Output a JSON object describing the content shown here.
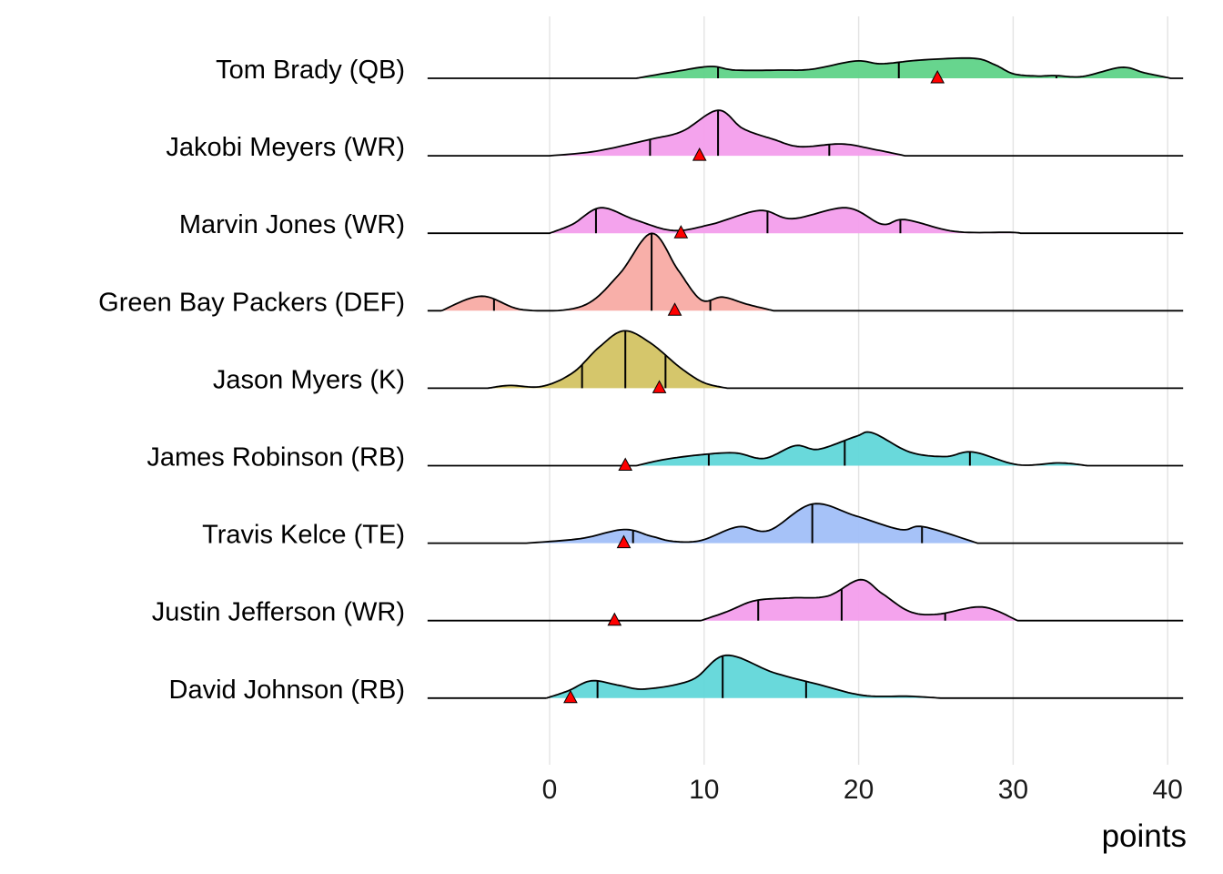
{
  "chart_data": {
    "type": "ridgeline",
    "title": "",
    "xlabel": "points",
    "ylabel": "",
    "xlim": [
      -7.9,
      41
    ],
    "x_ticks": [
      0,
      10,
      20,
      30,
      40
    ],
    "x_tick_labels": [
      "0",
      "10",
      "20",
      "30",
      "40"
    ],
    "grid": "vertical major gridlines",
    "marker_color": "#ff0000",
    "series": [
      {
        "name": "Tom Brady (QB)",
        "color": "#62d48a",
        "density_x": [
          5.6,
          8,
          10.4,
          12,
          15,
          17,
          19.8,
          21.5,
          24,
          27.4,
          28.8,
          30,
          31.5,
          32.7,
          34.5,
          37,
          38.5,
          40.2
        ],
        "density_y": [
          0,
          0.07,
          0.13,
          0.09,
          0.09,
          0.1,
          0.19,
          0.16,
          0.2,
          0.22,
          0.15,
          0.05,
          0.025,
          0.03,
          0.02,
          0.12,
          0.06,
          0
        ],
        "quantiles": [
          10.9,
          22.6,
          32.8
        ],
        "marker": 25.1
      },
      {
        "name": "Jakobi Meyers (WR)",
        "color": "#f4a0ec",
        "density_x": [
          0,
          3,
          6.5,
          8.6,
          10.9,
          12.5,
          14.5,
          16.2,
          18.9,
          21,
          23
        ],
        "density_y": [
          0,
          0.05,
          0.18,
          0.27,
          0.5,
          0.3,
          0.18,
          0.1,
          0.13,
          0.07,
          0
        ],
        "quantiles": [
          6.5,
          10.9,
          18.1
        ],
        "marker": 9.7
      },
      {
        "name": "Marvin Jones (WR)",
        "color": "#f4a0ec",
        "density_x": [
          0,
          1.5,
          3.3,
          5.5,
          8,
          10.5,
          13.6,
          15.7,
          19.2,
          21.5,
          23,
          26.2,
          29.8,
          30.5
        ],
        "density_y": [
          0,
          0.1,
          0.28,
          0.15,
          0.03,
          0.1,
          0.25,
          0.16,
          0.28,
          0.1,
          0.15,
          0.02,
          0.01,
          0
        ],
        "quantiles": [
          3.0,
          14.1,
          22.7
        ],
        "marker": 8.5
      },
      {
        "name": "Green Bay Packers (DEF)",
        "color": "#f8aca6",
        "density_x": [
          -7,
          -4.4,
          -1.7,
          2.1,
          4.5,
          6.6,
          8.3,
          9.8,
          11.2,
          12.8,
          14.5
        ],
        "density_y": [
          0,
          0.16,
          0.01,
          0.05,
          0.4,
          0.85,
          0.45,
          0.12,
          0.15,
          0.07,
          0
        ],
        "quantiles": [
          -3.6,
          6.6,
          10.4
        ],
        "marker": 8.1
      },
      {
        "name": "Jason Myers (K)",
        "color": "#d4c466",
        "density_x": [
          -4,
          -2.6,
          -0.5,
          1.5,
          3.2,
          4.8,
          6.5,
          8.5,
          10,
          11.5
        ],
        "density_y": [
          0,
          0.03,
          0.02,
          0.17,
          0.45,
          0.63,
          0.5,
          0.22,
          0.06,
          0
        ],
        "quantiles": [
          2.1,
          4.9,
          7.5
        ],
        "marker": 7.1
      },
      {
        "name": "James Robinson (RB)",
        "color": "#64d8da",
        "density_x": [
          5.6,
          7.5,
          9.8,
          12,
          13.9,
          15.9,
          17.4,
          19.8,
          20.9,
          23.3,
          25.6,
          27.4,
          30.3,
          33,
          34.8
        ],
        "density_y": [
          0,
          0.07,
          0.12,
          0.14,
          0.08,
          0.22,
          0.18,
          0.32,
          0.36,
          0.15,
          0.1,
          0.15,
          0.01,
          0.03,
          0
        ],
        "quantiles": [
          10.3,
          19.1,
          27.2
        ],
        "marker": 4.9
      },
      {
        "name": "Travis Kelce (TE)",
        "color": "#a3c0f8",
        "density_x": [
          -1.5,
          2,
          4.8,
          6.5,
          8,
          9.8,
          12.2,
          14.2,
          17,
          19.8,
          22.7,
          24.2,
          27.7
        ],
        "density_y": [
          0,
          0.05,
          0.15,
          0.08,
          0.02,
          0.03,
          0.18,
          0.14,
          0.43,
          0.3,
          0.15,
          0.18,
          0
        ],
        "quantiles": [
          5.4,
          17.0,
          24.1
        ],
        "marker": 4.8
      },
      {
        "name": "Justin Jefferson (WR)",
        "color": "#f4a0ec",
        "density_x": [
          9.8,
          11.5,
          13.3,
          15.7,
          18,
          20.1,
          21.5,
          23.3,
          25.1,
          28,
          30.3
        ],
        "density_y": [
          0,
          0.1,
          0.22,
          0.25,
          0.27,
          0.45,
          0.3,
          0.1,
          0.07,
          0.15,
          0
        ],
        "quantiles": [
          13.5,
          18.9,
          25.6
        ],
        "marker": 4.2
      },
      {
        "name": "David Johnson (RB)",
        "color": "#64d8da",
        "density_x": [
          -0.2,
          1.2,
          2.7,
          4.5,
          6.2,
          9.2,
          11.4,
          14.5,
          17.4,
          20.3,
          23.3,
          25.3
        ],
        "density_y": [
          0,
          0.08,
          0.19,
          0.14,
          0.1,
          0.2,
          0.47,
          0.28,
          0.15,
          0.03,
          0.02,
          0
        ],
        "quantiles": [
          3.1,
          11.2,
          16.6
        ],
        "marker": 1.35
      }
    ]
  }
}
